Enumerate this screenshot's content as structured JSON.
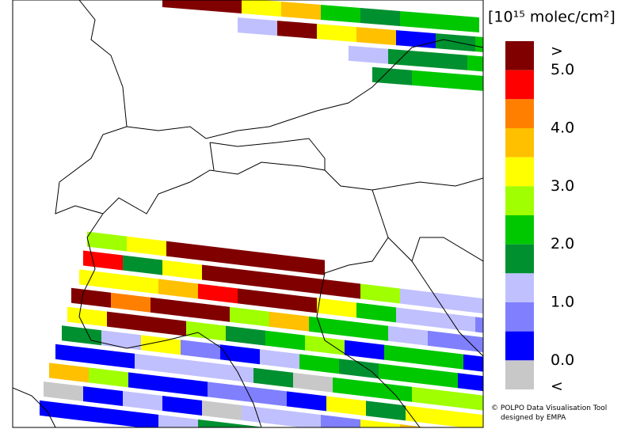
{
  "legend": {
    "title": "[10¹⁵ molec/cm²]",
    "colors": [
      "#800000",
      "#ff0000",
      "#ff8000",
      "#ffc000",
      "#ffff00",
      "#a0ff00",
      "#00c800",
      "#009030",
      "#c0c0ff",
      "#8080ff",
      "#0000ff",
      "#c8c8c8"
    ],
    "labels": [
      ">",
      "5.0",
      "4.0",
      "3.0",
      "2.0",
      "1.0",
      "0.0",
      "<"
    ]
  },
  "swaths": [
    {
      "rows": [
        [
          0,
          0,
          4,
          3,
          6,
          7,
          6,
          6
        ],
        [
          8,
          0,
          4,
          3,
          10,
          7,
          6,
          6,
          6
        ],
        [
          8,
          7,
          7,
          6,
          6,
          6
        ],
        [
          7,
          6,
          6
        ]
      ]
    },
    {
      "rows": [
        [
          5,
          4,
          0,
          0,
          0,
          0
        ],
        [
          1,
          7,
          4,
          0,
          0,
          0,
          0,
          5,
          8,
          8,
          8
        ],
        [
          4,
          4,
          3,
          1,
          0,
          0,
          4,
          6,
          8,
          8,
          9
        ],
        [
          0,
          2,
          0,
          0,
          5,
          3,
          6,
          6,
          8,
          9,
          9
        ],
        [
          4,
          0,
          0,
          5,
          7,
          6,
          5,
          10,
          6,
          6,
          10
        ],
        [
          7,
          8,
          4,
          9,
          10,
          8,
          6,
          7,
          6,
          6,
          10
        ],
        [
          10,
          10,
          8,
          8,
          8,
          7,
          11,
          6,
          6,
          5,
          5
        ],
        [
          3,
          5,
          10,
          10,
          9,
          9,
          10,
          4,
          7,
          4,
          4
        ],
        [
          11,
          10,
          8,
          10,
          11,
          8,
          8,
          9,
          4,
          3
        ],
        [
          10,
          10,
          10,
          8,
          7,
          7,
          6,
          6
        ]
      ]
    }
  ],
  "credit": [
    "© POLPO Data Visualisation Tool",
    "designed by EMPA"
  ]
}
